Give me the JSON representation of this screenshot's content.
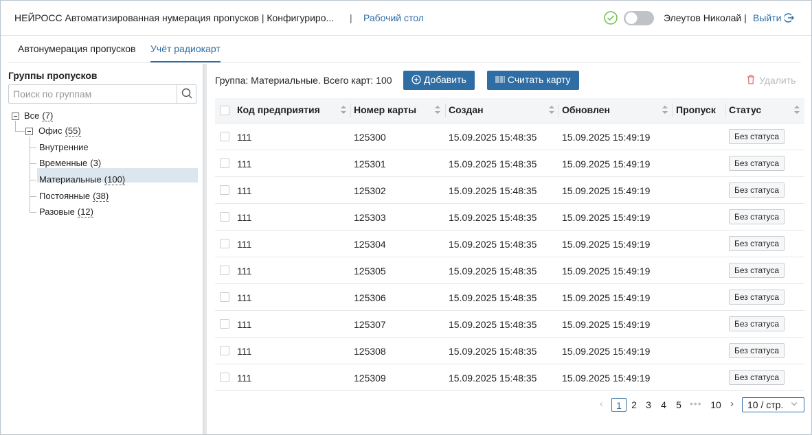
{
  "header": {
    "title": "НЕЙРОСС Автоматизированная нумерация пропусков | Конфигуриро...",
    "link": "Рабочий стол",
    "user": "Элеутов Николай |",
    "logout": "Выйти"
  },
  "tabs": [
    "Автонумерация пропусков",
    "Учёт радиокарт"
  ],
  "sidebar": {
    "title": "Группы пропусков",
    "search_placeholder": "Поиск по группам",
    "tree": [
      {
        "label": "Все",
        "count": 7,
        "level": 0
      },
      {
        "label": "Офис",
        "count": 55,
        "level": 1
      },
      {
        "label": "Внутренние",
        "level": 2
      },
      {
        "label": "Временные",
        "count": 3,
        "level": 2
      },
      {
        "label": "Материальные",
        "count": 100,
        "level": 2,
        "selected": true
      },
      {
        "label": "Постоянные",
        "count": 38,
        "level": 2
      },
      {
        "label": "Разовые",
        "count": 12,
        "level": 2
      }
    ]
  },
  "toolbar": {
    "info": "Группа: Материальные. Всего карт: 100",
    "add": "Добавить",
    "read": "Считать карту",
    "delete": "Удалить"
  },
  "table": {
    "columns": [
      "Код предприятия",
      "Номер карты",
      "Создан",
      "Обновлен",
      "Пропуск",
      "Статус"
    ],
    "rows": [
      {
        "code": "111",
        "number": "125300",
        "created": "15.09.2025 15:48:35",
        "updated": "15.09.2025 15:49:19",
        "status": "Без статуса"
      },
      {
        "code": "111",
        "number": "125301",
        "created": "15.09.2025 15:48:35",
        "updated": "15.09.2025 15:49:19",
        "status": "Без статуса"
      },
      {
        "code": "111",
        "number": "125302",
        "created": "15.09.2025 15:48:35",
        "updated": "15.09.2025 15:49:19",
        "status": "Без статуса"
      },
      {
        "code": "111",
        "number": "125303",
        "created": "15.09.2025 15:48:35",
        "updated": "15.09.2025 15:49:19",
        "status": "Без статуса"
      },
      {
        "code": "111",
        "number": "125304",
        "created": "15.09.2025 15:48:35",
        "updated": "15.09.2025 15:49:19",
        "status": "Без статуса"
      },
      {
        "code": "111",
        "number": "125305",
        "created": "15.09.2025 15:48:35",
        "updated": "15.09.2025 15:49:19",
        "status": "Без статуса"
      },
      {
        "code": "111",
        "number": "125306",
        "created": "15.09.2025 15:48:35",
        "updated": "15.09.2025 15:49:19",
        "status": "Без статуса"
      },
      {
        "code": "111",
        "number": "125307",
        "created": "15.09.2025 15:48:35",
        "updated": "15.09.2025 15:49:19",
        "status": "Без статуса"
      },
      {
        "code": "111",
        "number": "125308",
        "created": "15.09.2025 15:48:35",
        "updated": "15.09.2025 15:49:19",
        "status": "Без статуса"
      },
      {
        "code": "111",
        "number": "125309",
        "created": "15.09.2025 15:48:35",
        "updated": "15.09.2025 15:49:19",
        "status": "Без статуса"
      }
    ]
  },
  "pagination": {
    "pages": [
      1,
      2,
      3,
      4,
      5,
      10
    ],
    "current": 1,
    "page_size": "10 / стр."
  }
}
